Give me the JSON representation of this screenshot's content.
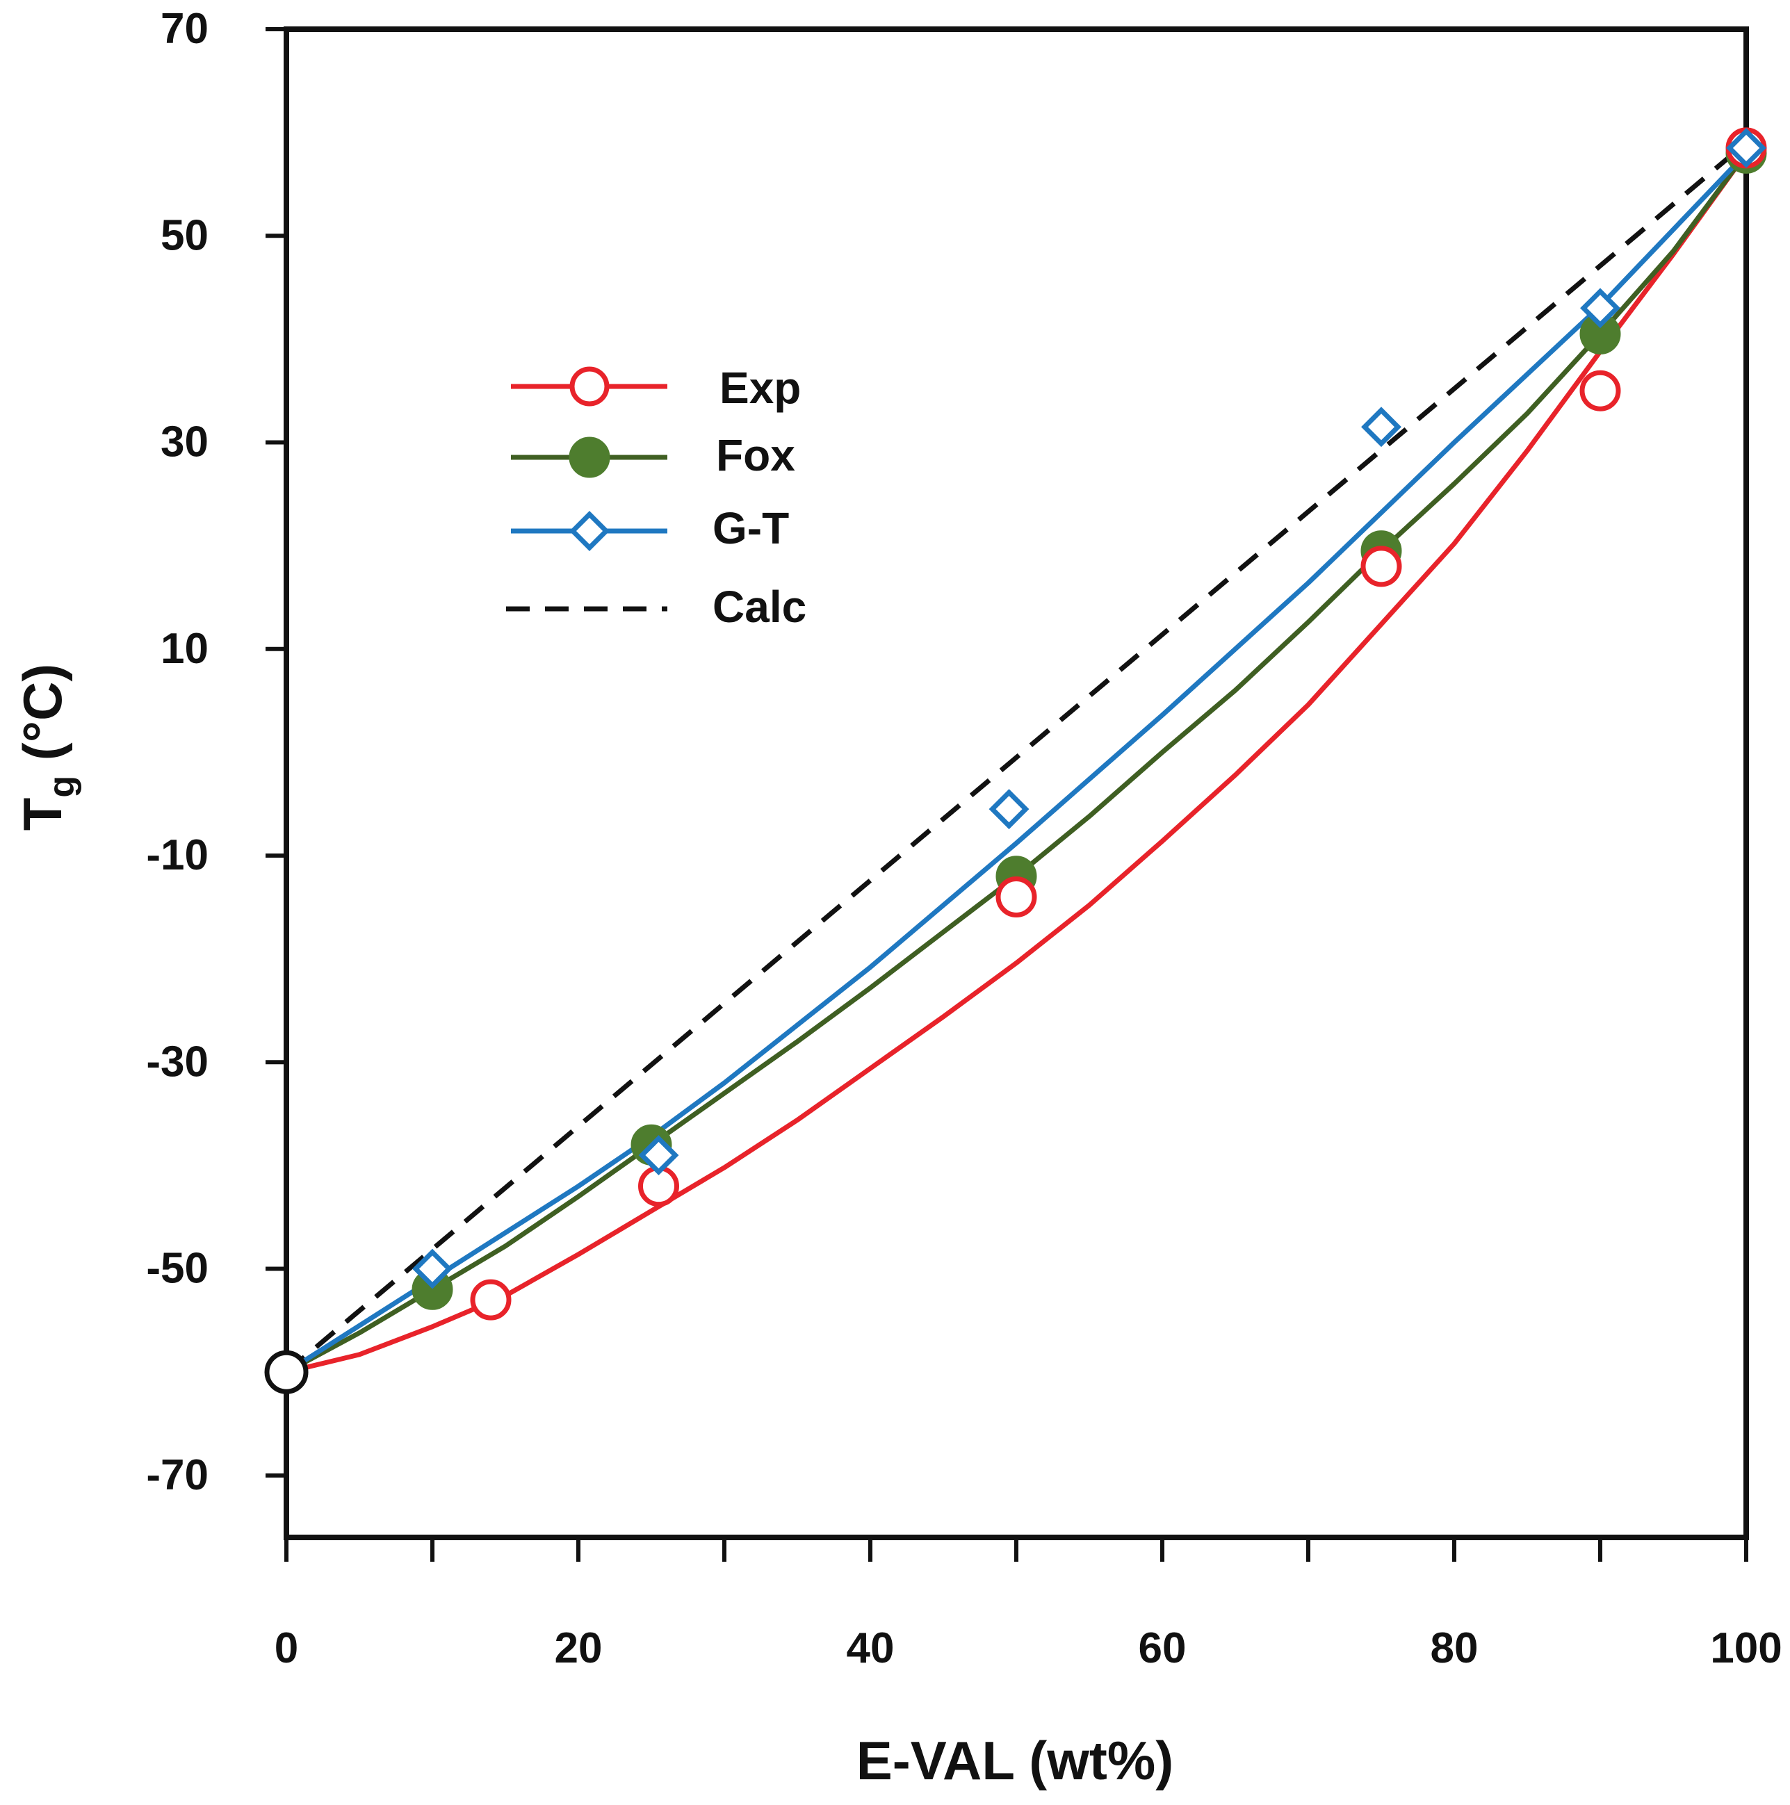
{
  "chart_data": {
    "type": "line",
    "title": "",
    "xlabel": "E-VAL (wt%)",
    "ylabel_main": "T",
    "ylabel_sub": "g",
    "ylabel_unit": " (°C)",
    "xlim": [
      0,
      100
    ],
    "ylim": [
      -76,
      70
    ],
    "x_ticks": [
      0,
      20,
      40,
      60,
      80,
      100
    ],
    "x_minor_ticks": [
      10,
      30,
      50,
      70,
      90
    ],
    "y_ticks": [
      70,
      50,
      30,
      10,
      -10,
      -30,
      -50,
      -70
    ],
    "grid": false,
    "legend_position": "upper-left",
    "colors": {
      "exp": "#e8232a",
      "fox": "#4e7d2e",
      "fox_line": "#3f5f22",
      "gt": "#1f78c1",
      "calc": "#111111",
      "axis": "#111111"
    },
    "series": [
      {
        "name": "Exp",
        "marker": "open-circle",
        "color": "#e8232a",
        "points": [
          [
            0,
            -60
          ],
          [
            14,
            -53
          ],
          [
            25.5,
            -42
          ],
          [
            50,
            -14
          ],
          [
            75,
            18
          ],
          [
            90,
            35
          ],
          [
            100,
            58.5
          ]
        ],
        "curve": [
          [
            0,
            -60
          ],
          [
            5,
            -58.3
          ],
          [
            10,
            -55.6
          ],
          [
            15,
            -52.6
          ],
          [
            20,
            -48.6
          ],
          [
            25,
            -44.4
          ],
          [
            30,
            -40.2
          ],
          [
            35,
            -35.6
          ],
          [
            40,
            -30.6
          ],
          [
            45,
            -25.6
          ],
          [
            50,
            -20.4
          ],
          [
            55,
            -14.8
          ],
          [
            60,
            -8.6
          ],
          [
            65,
            -2.2
          ],
          [
            70,
            4.6
          ],
          [
            75,
            12.4
          ],
          [
            80,
            20.2
          ],
          [
            85,
            29.2
          ],
          [
            90,
            38.8
          ],
          [
            95,
            48.2
          ],
          [
            100,
            58
          ]
        ]
      },
      {
        "name": "Fox",
        "marker": "filled-circle",
        "color": "#4e7d2e",
        "points": [
          [
            10,
            -52
          ],
          [
            25,
            -38
          ],
          [
            50,
            -12
          ],
          [
            75,
            19.5
          ],
          [
            90,
            40.5
          ],
          [
            100,
            58
          ]
        ],
        "curve": [
          [
            0,
            -60
          ],
          [
            5,
            -56.2
          ],
          [
            10,
            -52
          ],
          [
            15,
            -47.8
          ],
          [
            20,
            -43
          ],
          [
            25,
            -38
          ],
          [
            30,
            -33
          ],
          [
            35,
            -28
          ],
          [
            40,
            -22.8
          ],
          [
            45,
            -17.4
          ],
          [
            50,
            -12
          ],
          [
            55,
            -6.2
          ],
          [
            60,
            0
          ],
          [
            65,
            6
          ],
          [
            70,
            12.6
          ],
          [
            75,
            19.5
          ],
          [
            80,
            26
          ],
          [
            85,
            32.8
          ],
          [
            90,
            40.5
          ],
          [
            95,
            48.5
          ],
          [
            100,
            58
          ]
        ]
      },
      {
        "name": "G-T",
        "marker": "open-diamond",
        "color": "#1f78c1",
        "points": [
          [
            10,
            -50
          ],
          [
            25.5,
            -39
          ],
          [
            49.5,
            -5.5
          ],
          [
            75,
            31.5
          ],
          [
            90,
            43
          ],
          [
            100,
            58.5
          ]
        ],
        "curve": [
          [
            0,
            -60
          ],
          [
            10,
            -51
          ],
          [
            20,
            -42
          ],
          [
            25,
            -37.2
          ],
          [
            30,
            -32
          ],
          [
            40,
            -20.8
          ],
          [
            50,
            -8.8
          ],
          [
            60,
            3.6
          ],
          [
            70,
            16.4
          ],
          [
            75,
            23.2
          ],
          [
            80,
            30
          ],
          [
            90,
            43.2
          ],
          [
            100,
            58
          ]
        ]
      },
      {
        "name": "Calc",
        "marker": "none",
        "dash": true,
        "color": "#111111",
        "points": [],
        "curve": [
          [
            0,
            -60
          ],
          [
            100,
            59
          ]
        ]
      }
    ],
    "reference_point": {
      "label": "",
      "x": 0,
      "y": -60,
      "marker": "open-circle",
      "color": "#111111"
    }
  }
}
